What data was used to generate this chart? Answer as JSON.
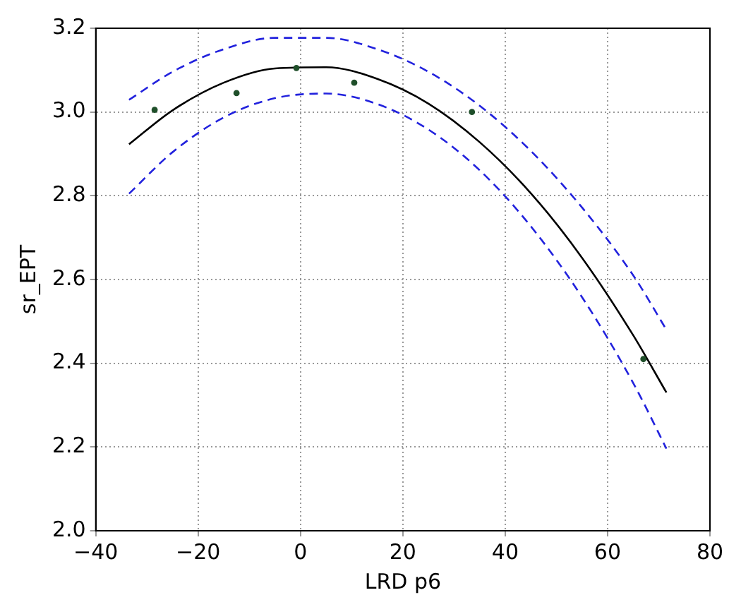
{
  "chart_data": {
    "type": "scatter",
    "xlabel": "LRD p6",
    "ylabel": "sr_EPT",
    "xlim": [
      -40,
      80
    ],
    "ylim": [
      2.0,
      3.2
    ],
    "xticks": [
      {
        "value": -40,
        "label": "−40"
      },
      {
        "value": -20,
        "label": "−20"
      },
      0,
      20,
      40,
      60,
      80
    ],
    "yticks": [
      {
        "value": 2.0,
        "label": "2.0"
      },
      {
        "value": 2.2,
        "label": "2.2"
      },
      {
        "value": 2.4,
        "label": "2.4"
      },
      {
        "value": 2.6,
        "label": "2.6"
      },
      {
        "value": 2.8,
        "label": "2.8"
      },
      {
        "value": 3.0,
        "label": "3.0"
      },
      {
        "value": 3.2,
        "label": "3.2"
      }
    ],
    "grid": true,
    "series": [
      {
        "type": "scatter",
        "color": "#1f4f2a",
        "marker": "circle",
        "x": [
          -28.5,
          -12.5,
          -0.8,
          10.5,
          33.5,
          67
        ],
        "values": [
          3.005,
          3.045,
          3.105,
          3.07,
          3.0,
          2.41
        ]
      },
      {
        "type": "line",
        "color": "#000000",
        "marker": "none",
        "line_style": "solid",
        "x": [
          -33.5,
          -25,
          -15,
          -5,
          5,
          15,
          25,
          35,
          45,
          55,
          65,
          71.5
        ],
        "values": [
          2.923,
          3.004,
          3.07,
          3.104,
          3.107,
          3.079,
          3.02,
          2.928,
          2.806,
          2.652,
          2.467,
          2.33
        ]
      },
      {
        "type": "line",
        "color": "#2222dd",
        "marker": "none",
        "line_style": "dashed",
        "x": [
          -33.5,
          -25,
          -15,
          -5,
          5,
          15,
          25,
          35,
          45,
          55,
          65,
          71.5
        ],
        "values": [
          3.029,
          3.096,
          3.15,
          3.177,
          3.177,
          3.15,
          3.096,
          3.015,
          2.907,
          2.772,
          2.61,
          2.48
        ]
      },
      {
        "type": "line",
        "color": "#2222dd",
        "marker": "none",
        "line_style": "dashed",
        "x": [
          -33.5,
          -25,
          -15,
          -5,
          5,
          15,
          25,
          35,
          45,
          55,
          65,
          71.5
        ],
        "values": [
          2.805,
          2.904,
          2.987,
          3.033,
          3.044,
          3.019,
          2.958,
          2.861,
          2.727,
          2.558,
          2.353,
          2.196
        ]
      }
    ]
  }
}
